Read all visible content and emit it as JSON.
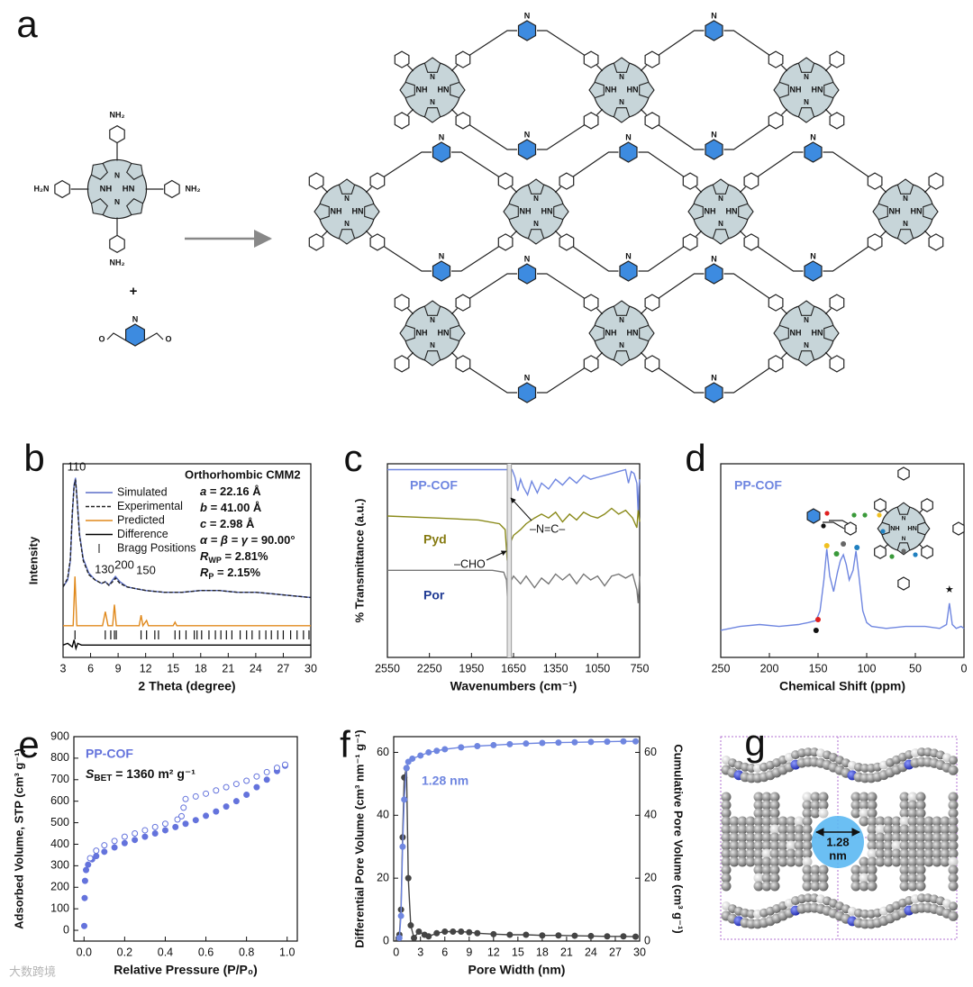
{
  "diagram_a": {
    "panel": "a",
    "amine_right": "NH₂",
    "amine_left": "H₂N",
    "plus": "+",
    "oxygen": "O",
    "core_nh": "NH",
    "core_hn": "HN",
    "core_n": "N",
    "pyridine_n": "N"
  },
  "chart_data": [
    {
      "type": "line",
      "panel": "b",
      "xlabel": "2 Theta (degree)",
      "ylabel": "Intensity",
      "xlim": [
        3,
        30
      ],
      "xticks": [
        3,
        6,
        9,
        12,
        15,
        18,
        21,
        24,
        27,
        30
      ],
      "ylim": [
        -10,
        100
      ],
      "x": [
        3,
        3.5,
        3.8,
        4.0,
        4.2,
        4.35,
        4.5,
        4.8,
        5.2,
        5.8,
        6.5,
        7.2,
        7.6,
        8.0,
        8.4,
        8.7,
        9.2,
        10,
        11,
        12,
        14,
        16,
        18,
        20,
        22,
        24,
        26,
        28,
        30
      ],
      "series": [
        {
          "name": "Simulated",
          "color": "#5b6fc8",
          "values": [
            30,
            34,
            45,
            70,
            88,
            92,
            82,
            60,
            46,
            38,
            34,
            32,
            33,
            31,
            34,
            36,
            33,
            30,
            29,
            28,
            27,
            27,
            28,
            28,
            27,
            27,
            26,
            25,
            24
          ]
        },
        {
          "name": "Experimental",
          "color": "#222222",
          "dash": true,
          "values": [
            30,
            35,
            46,
            72,
            87,
            91,
            81,
            59,
            45,
            37,
            34,
            32,
            33,
            31,
            33,
            35,
            32,
            30,
            29,
            28,
            27,
            27,
            28,
            28,
            27,
            27,
            26,
            25,
            24
          ]
        },
        {
          "name": "Predicted",
          "color": "#e0891c",
          "x": [
            3,
            4.1,
            4.3,
            4.5,
            7.3,
            7.6,
            7.9,
            8.4,
            8.6,
            8.8,
            11.3,
            11.5,
            11.7,
            12.1,
            12.3,
            15.0,
            15.2,
            15.4,
            30
          ],
          "values": [
            8,
            8,
            36,
            8,
            8,
            16,
            8,
            8,
            20,
            8,
            8,
            14,
            8,
            11,
            8,
            8,
            10,
            8,
            8
          ]
        },
        {
          "name": "Difference",
          "color": "#000000",
          "x": [
            3,
            3.5,
            4.0,
            4.2,
            4.4,
            4.6,
            5,
            6,
            8,
            10,
            30
          ],
          "values": [
            -3,
            -2,
            -4,
            0,
            -5,
            -2,
            -3,
            -3,
            -3,
            -3,
            -3
          ]
        }
      ],
      "bragg_positions": [
        4.3,
        7.6,
        8.2,
        8.6,
        8.8,
        11.5,
        12.1,
        13.0,
        13.4,
        15.2,
        15.7,
        16.4,
        17.3,
        17.6,
        18.1,
        18.9,
        19.6,
        20.2,
        20.8,
        21.4,
        22.3,
        23.0,
        23.6,
        24.4,
        25.1,
        25.7,
        26.4,
        27.0,
        27.8,
        28.5,
        29.2,
        29.8
      ],
      "bragg_label": "Bragg Positions",
      "peak_labels": [
        "110",
        "130",
        "200",
        "150"
      ],
      "cell": {
        "title": "Orthorhombic CMM2",
        "lines": [
          {
            "symbol": "a",
            "text": " = 22.16 Å"
          },
          {
            "symbol": "b",
            "text": " = 41.00 Å"
          },
          {
            "symbol": "c",
            "text": " =   2.98 Å"
          },
          {
            "symbol": "α = β = γ",
            "text": " = 90.00°"
          },
          {
            "symbol": "R",
            "sub": "WP",
            "text": " = 2.81%"
          },
          {
            "symbol": "R",
            "sub": "P",
            "text": "  =  2.15%"
          }
        ]
      }
    },
    {
      "type": "line",
      "panel": "c",
      "xlabel": "Wavenumbers (cm⁻¹)",
      "ylabel": "% Transmittance (a.u.)",
      "xlim": [
        2550,
        750
      ],
      "xticks": [
        2550,
        2250,
        1950,
        1650,
        1350,
        1050,
        750
      ],
      "ylim": [
        0,
        100
      ],
      "reference_lines": [
        1695,
        1665
      ],
      "series": [
        {
          "name": "PP-COF",
          "color": "#6f86e0",
          "label_color": "#6f86e0",
          "x": [
            2550,
            2200,
            1900,
            1700,
            1660,
            1640,
            1620,
            1600,
            1580,
            1550,
            1520,
            1480,
            1450,
            1400,
            1350,
            1300,
            1250,
            1200,
            1150,
            1100,
            1050,
            1000,
            950,
            900,
            850,
            830,
            810,
            790,
            770,
            760,
            755,
            750
          ],
          "values": [
            97,
            97,
            97,
            97,
            97,
            93,
            86,
            92,
            88,
            84,
            91,
            85,
            90,
            87,
            92,
            89,
            93,
            90,
            94,
            92,
            93,
            94,
            95,
            96,
            97,
            90,
            96,
            95,
            90,
            74,
            88,
            92
          ]
        },
        {
          "name": "Pyd",
          "color": "#8a8a1a",
          "label_color": "#857a10",
          "x": [
            2550,
            2200,
            1900,
            1750,
            1710,
            1695,
            1680,
            1650,
            1600,
            1560,
            1500,
            1450,
            1400,
            1350,
            1300,
            1250,
            1200,
            1150,
            1100,
            1050,
            1000,
            950,
            900,
            850,
            800,
            770,
            760,
            750
          ],
          "values": [
            73,
            72,
            71,
            69,
            66,
            50,
            58,
            63,
            66,
            69,
            72,
            74,
            72,
            75,
            70,
            74,
            71,
            75,
            73,
            72,
            74,
            77,
            74,
            76,
            72,
            67,
            76,
            70
          ]
        },
        {
          "name": "Por",
          "color": "#777777",
          "label_color": "#1f3a93",
          "x": [
            2550,
            2000,
            1800,
            1720,
            1700,
            1690,
            1680,
            1650,
            1600,
            1560,
            1500,
            1450,
            1400,
            1350,
            1300,
            1250,
            1200,
            1150,
            1100,
            1050,
            1000,
            950,
            900,
            850,
            800,
            770,
            760,
            750
          ],
          "values": [
            45,
            45,
            45,
            44,
            40,
            26,
            38,
            42,
            38,
            42,
            36,
            41,
            38,
            43,
            40,
            43,
            38,
            43,
            40,
            42,
            37,
            42,
            43,
            41,
            43,
            35,
            28,
            42
          ]
        }
      ],
      "annotations": [
        "–N=C–",
        "–CHO"
      ]
    },
    {
      "type": "line",
      "panel": "d",
      "xlabel": "Chemical Shift (ppm)",
      "xlim": [
        250,
        0
      ],
      "xticks": [
        250,
        200,
        150,
        100,
        50,
        0
      ],
      "ylim": [
        0,
        100
      ],
      "x": [
        250,
        230,
        210,
        190,
        170,
        160,
        152,
        148,
        144,
        141,
        138,
        134,
        130,
        127,
        124,
        121,
        118,
        114,
        111,
        108,
        104,
        100,
        95,
        80,
        60,
        40,
        25,
        18,
        15,
        12,
        8,
        3,
        0
      ],
      "series": [
        {
          "name": "PP-COF",
          "color": "#6f86e0",
          "values": [
            14,
            16,
            17,
            16,
            17,
            18,
            19,
            24,
            40,
            56,
            42,
            34,
            44,
            50,
            53,
            48,
            40,
            45,
            55,
            42,
            24,
            18,
            16,
            15,
            16,
            16,
            15,
            17,
            28,
            17,
            15,
            16,
            15
          ]
        }
      ],
      "star": "★"
    },
    {
      "type": "scatter",
      "panel": "e",
      "xlabel": "Relative Pressure (P/P₀)",
      "ylabel": "Adsorbed Volume, STP (cm³ g⁻¹)",
      "xlim": [
        -0.05,
        1.05
      ],
      "xticks": [
        {
          "value": 0,
          "label": "0.0"
        },
        0.2,
        0.4,
        0.6,
        0.8,
        {
          "value": 1,
          "label": "1.0"
        }
      ],
      "ylim": [
        -50,
        900
      ],
      "yticks": [
        0,
        100,
        200,
        300,
        400,
        500,
        600,
        700,
        800,
        900
      ],
      "title": "PP-COF",
      "bet": {
        "symbol": "S",
        "sub": "BET",
        "text": " = 1360 m² g⁻¹"
      },
      "series": [
        {
          "color": "#6473dc",
          "marker": "filled",
          "line": false,
          "x": [
            0.001,
            0.003,
            0.005,
            0.01,
            0.02,
            0.04,
            0.06,
            0.1,
            0.15,
            0.2,
            0.25,
            0.3,
            0.35,
            0.4,
            0.45,
            0.5,
            0.55,
            0.6,
            0.65,
            0.7,
            0.75,
            0.8,
            0.85,
            0.9,
            0.95,
            0.99
          ],
          "values": [
            20,
            150,
            230,
            280,
            305,
            330,
            345,
            365,
            385,
            405,
            420,
            435,
            450,
            465,
            480,
            495,
            512,
            532,
            552,
            575,
            600,
            630,
            665,
            700,
            740,
            765
          ]
        },
        {
          "color": "#6473dc",
          "marker": "open",
          "line": false,
          "x": [
            0.99,
            0.95,
            0.9,
            0.85,
            0.8,
            0.75,
            0.7,
            0.65,
            0.6,
            0.55,
            0.5,
            0.49,
            0.48,
            0.46,
            0.4,
            0.35,
            0.3,
            0.25,
            0.2,
            0.15,
            0.1,
            0.06,
            0.03
          ],
          "values": [
            770,
            755,
            735,
            715,
            695,
            680,
            665,
            650,
            635,
            622,
            610,
            570,
            530,
            515,
            495,
            480,
            465,
            450,
            435,
            415,
            395,
            370,
            335
          ]
        }
      ]
    },
    {
      "type": "line",
      "panel": "f",
      "xlabel": "Pore Width  (nm)",
      "ylabel": "Differential Pore Volume (cm³ nm⁻¹ g⁻¹)",
      "y2label": "Cumulative Pore Volume (cm³ g⁻¹)",
      "xlim": [
        -0.3,
        30
      ],
      "xticks": [
        0,
        3,
        6,
        9,
        12,
        15,
        18,
        21,
        24,
        27,
        30
      ],
      "ylim": [
        0,
        65
      ],
      "yticks": [
        0,
        20,
        40,
        60
      ],
      "y2lim": [
        0,
        65
      ],
      "y2ticks": [
        0,
        20,
        40,
        60
      ],
      "annotation": "1.28 nm",
      "series": [
        {
          "color": "#444444",
          "marker": "filled",
          "x": [
            0.4,
            0.6,
            0.8,
            1.0,
            1.28,
            1.5,
            1.8,
            2.2,
            2.8,
            3.5,
            4,
            5,
            6,
            7,
            8,
            9,
            10,
            12,
            14,
            16,
            18,
            20,
            22,
            24,
            26,
            28,
            29.5
          ],
          "values": [
            2,
            10,
            33,
            52,
            55,
            20,
            5,
            1,
            3,
            2,
            1.5,
            2.5,
            3,
            3,
            3,
            2.8,
            2.5,
            2.2,
            2,
            2,
            1.8,
            1.8,
            1.7,
            1.6,
            1.5,
            1.5,
            1.4
          ]
        },
        {
          "color": "#6f86e0",
          "marker": "filled",
          "axis": "y2",
          "x": [
            0.4,
            0.6,
            0.8,
            1.0,
            1.28,
            1.5,
            2,
            3,
            4,
            5,
            6,
            8,
            10,
            12,
            14,
            16,
            18,
            20,
            22,
            24,
            26,
            28,
            29.5
          ],
          "values": [
            1,
            8,
            30,
            45,
            55,
            57,
            58,
            59,
            60,
            60.5,
            61,
            61.6,
            62,
            62.3,
            62.6,
            62.8,
            63,
            63.1,
            63.2,
            63.3,
            63.4,
            63.5,
            63.5
          ]
        }
      ]
    }
  ],
  "figure_g": {
    "panel": "g",
    "pore_size": "1.28",
    "unit": "nm"
  },
  "watermark": "大数跨境"
}
